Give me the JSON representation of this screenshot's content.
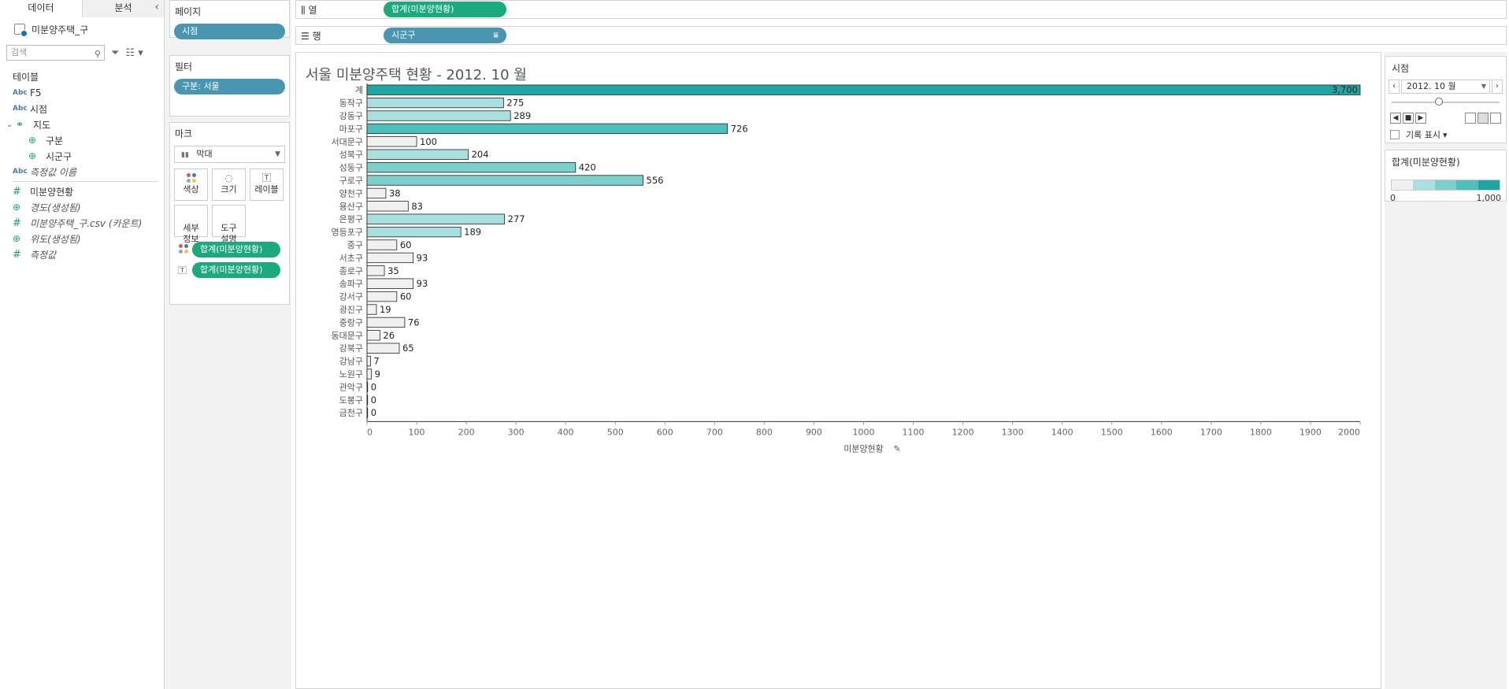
{
  "data_pane": {
    "tabs": [
      "데이터",
      "분석"
    ],
    "collapse_icon": "chevron-left",
    "datasource": "미분양주택_구",
    "search_placeholder": "검색",
    "tables_heading": "테이블",
    "fields": [
      {
        "type": "Abc",
        "label": "F5",
        "indent": 0,
        "italic": false
      },
      {
        "type": "Abc",
        "label": "시점",
        "indent": 0,
        "italic": false
      },
      {
        "type": "hier",
        "label": "지도",
        "indent": 0,
        "italic": false
      },
      {
        "type": "geo",
        "label": "구분",
        "indent": 1,
        "italic": false
      },
      {
        "type": "geo",
        "label": "시군구",
        "indent": 1,
        "italic": false
      },
      {
        "type": "Abc",
        "label": "측정값 이름",
        "indent": 0,
        "italic": true
      }
    ],
    "measures": [
      {
        "type": "#",
        "label": "미분양현황",
        "italic": false
      },
      {
        "type": "geo",
        "label": "경도(생성됨)",
        "italic": true
      },
      {
        "type": "#",
        "label": "미분양주택_구.csv (카운트)",
        "italic": true
      },
      {
        "type": "geo",
        "label": "위도(생성됨)",
        "italic": true
      },
      {
        "type": "#",
        "label": "측정값",
        "italic": true
      }
    ]
  },
  "shelves": {
    "pages_title": "페이지",
    "pages_pill": "시점",
    "filters_title": "필터",
    "filters_pill": "구분: 서울",
    "marks_title": "마크",
    "mark_type": "막대",
    "mark_buttons": [
      "색상",
      "크기",
      "레이블",
      "세부\n정보",
      "도구\n설명"
    ],
    "encodings": [
      "합계(미분양현황)",
      "합계(미분양현황)"
    ],
    "columns_label": "열",
    "columns_pill": "합계(미분양현황)",
    "rows_label": "행",
    "rows_pill": "시군구"
  },
  "page_card": {
    "title": "시점",
    "current": "2012. 10 월",
    "history_label": "기록 표시",
    "history_caret": "▾"
  },
  "legend": {
    "title": "합계(미분양현황)",
    "min_label": "0",
    "max_label": "1,000",
    "colors": [
      "#f0f0f0",
      "#a8e0df",
      "#7dcfcc",
      "#4fbfbb",
      "#1ea6a3"
    ]
  },
  "chart_data": {
    "type": "bar",
    "orientation": "horizontal",
    "title": "서울 미분양주택 현황 - 2012. 10 월",
    "xlabel": "미분양현황",
    "ylabel": "",
    "xlim": [
      0,
      2000
    ],
    "x_ticks": [
      0,
      100,
      200,
      300,
      400,
      500,
      600,
      700,
      800,
      900,
      1000,
      1100,
      1200,
      1300,
      1400,
      1500,
      1600,
      1700,
      1800,
      1900,
      2000
    ],
    "categories": [
      "계",
      "동작구",
      "강동구",
      "마포구",
      "서대문구",
      "성북구",
      "성동구",
      "구로구",
      "양천구",
      "용산구",
      "은평구",
      "영등포구",
      "중구",
      "서초구",
      "종로구",
      "송파구",
      "강서구",
      "광진구",
      "중랑구",
      "동대문구",
      "강북구",
      "강남구",
      "노원구",
      "관악구",
      "도봉구",
      "금천구"
    ],
    "values": [
      3700,
      275,
      289,
      726,
      100,
      204,
      420,
      556,
      38,
      83,
      277,
      189,
      60,
      93,
      35,
      93,
      60,
      19,
      76,
      26,
      65,
      7,
      9,
      0,
      0,
      0
    ],
    "value_labels": [
      "3,700",
      "275",
      "289",
      "726",
      "100",
      "204",
      "420",
      "556",
      "38",
      "83",
      "277",
      "189",
      "60",
      "93",
      "35",
      "93",
      "60",
      "19",
      "76",
      "26",
      "65",
      "7",
      "9",
      "0",
      "0",
      "0"
    ],
    "color_scale": {
      "min": 0,
      "max": 1000
    },
    "grid": false,
    "legend": "right"
  }
}
